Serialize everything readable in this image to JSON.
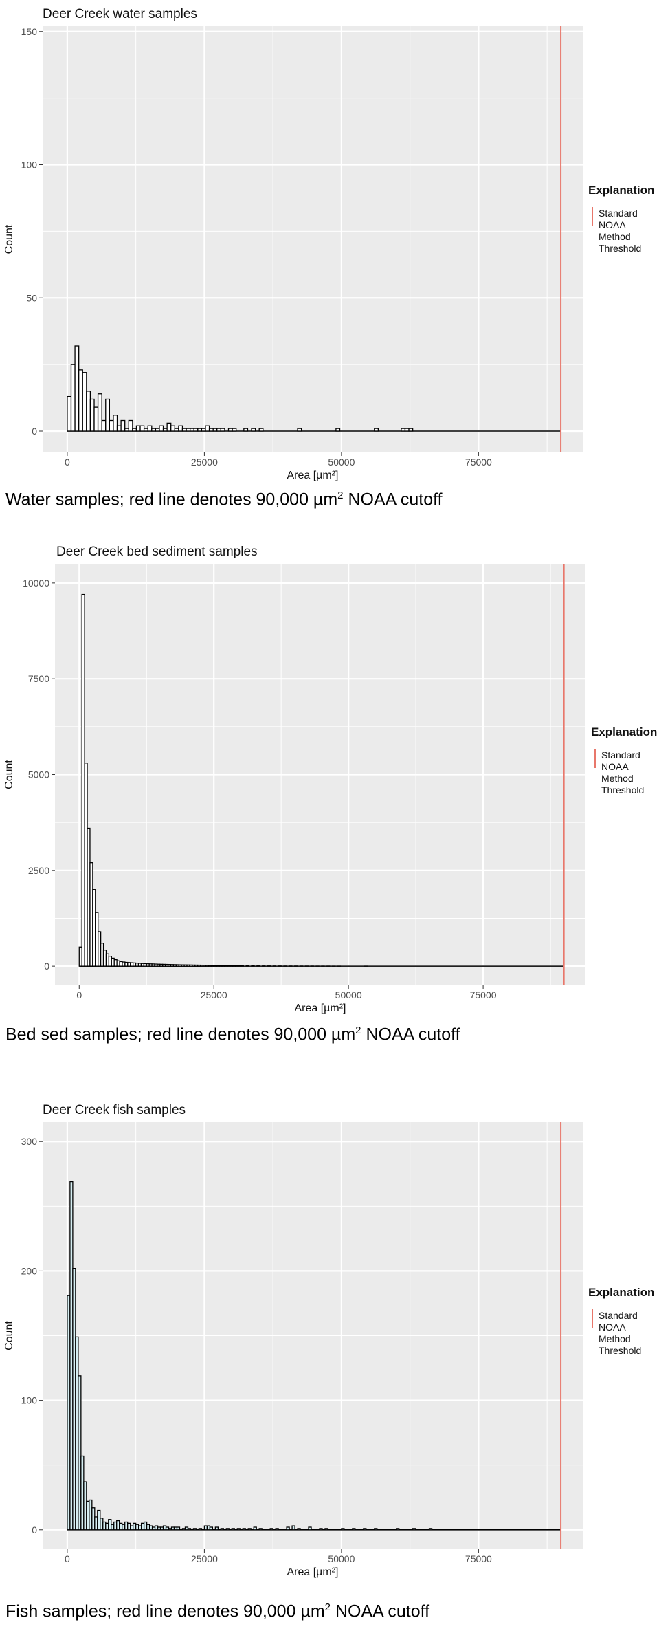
{
  "panels": [
    {
      "caption": {
        "before": "Water samples; red line denotes 90,000 µm",
        "sup": "2",
        "after": " NOAA cutoff"
      },
      "legend_title": "Explanation",
      "legend_label": [
        "Standard",
        "NOAA",
        "Method",
        "Threshold"
      ]
    },
    {
      "caption": {
        "before": "Bed sed samples; red line denotes 90,000 µm",
        "sup": "2",
        "after": " NOAA cutoff"
      },
      "legend_title": "Explanation",
      "legend_label": [
        "Standard",
        "NOAA",
        "Method",
        "Threshold"
      ]
    },
    {
      "caption": {
        "before": "Fish samples; red line denotes 90,000 µm",
        "sup": "2",
        "after": " NOAA cutoff"
      },
      "legend_title": "Explanation",
      "legend_label": [
        "Standard",
        "NOAA",
        "Method",
        "Threshold"
      ]
    }
  ],
  "colors": {
    "panel_bg": "#ebebeb",
    "grid": "#ffffff",
    "bar_outline": "#000000",
    "bar_fill_water": "#ffffff",
    "bar_fill_sed": "#ffffff",
    "bar_fill_fish": "#d6eef2",
    "threshold": "#e8776b",
    "axis_text": "#4d4d4d"
  },
  "chart_data": [
    {
      "type": "bar",
      "title": "Deer Creek water samples",
      "xlabel": "Area [µm²]",
      "ylabel": "Count",
      "xlim": [
        -4500,
        94000
      ],
      "ylim": [
        -8,
        152
      ],
      "xticks": [
        0,
        25000,
        50000,
        75000
      ],
      "xtick_labels": [
        "0",
        "25000",
        "50000",
        "75000"
      ],
      "yticks": [
        0,
        50,
        100,
        150
      ],
      "ytick_labels": [
        "0",
        "50",
        "100",
        "150"
      ],
      "bin_width": 700,
      "bins_start": 0,
      "bins_end": 90000,
      "bars": [
        [
          0,
          13
        ],
        [
          700,
          25
        ],
        [
          1400,
          32
        ],
        [
          2100,
          23
        ],
        [
          2800,
          22
        ],
        [
          3500,
          15
        ],
        [
          4200,
          12
        ],
        [
          4900,
          9
        ],
        [
          5600,
          14
        ],
        [
          6300,
          4
        ],
        [
          7000,
          12
        ],
        [
          7700,
          4
        ],
        [
          8400,
          6
        ],
        [
          9100,
          2
        ],
        [
          9800,
          4
        ],
        [
          10500,
          1
        ],
        [
          11200,
          4
        ],
        [
          11900,
          1
        ],
        [
          12600,
          2
        ],
        [
          13300,
          2
        ],
        [
          14000,
          1
        ],
        [
          14700,
          2
        ],
        [
          15400,
          1
        ],
        [
          16100,
          1
        ],
        [
          16800,
          2
        ],
        [
          17500,
          1
        ],
        [
          18200,
          3
        ],
        [
          18900,
          2
        ],
        [
          19600,
          1
        ],
        [
          20300,
          2
        ],
        [
          21000,
          1
        ],
        [
          21700,
          1
        ],
        [
          22400,
          1
        ],
        [
          23100,
          1
        ],
        [
          23800,
          1
        ],
        [
          24500,
          1
        ],
        [
          25200,
          2
        ],
        [
          25900,
          1
        ],
        [
          26600,
          1
        ],
        [
          27300,
          1
        ],
        [
          28000,
          1
        ],
        [
          29400,
          1
        ],
        [
          30100,
          1
        ],
        [
          32200,
          1
        ],
        [
          33600,
          1
        ],
        [
          35000,
          1
        ],
        [
          42000,
          1
        ],
        [
          49000,
          1
        ],
        [
          56000,
          1
        ],
        [
          60900,
          1
        ],
        [
          61600,
          1
        ],
        [
          62300,
          1
        ]
      ],
      "threshold_x": 90000,
      "legend": {
        "title": "Explanation",
        "entries": [
          "Standard NOAA Method Threshold"
        ],
        "position": "right"
      },
      "grid": true
    },
    {
      "type": "bar",
      "title": "Deer Creek bed sediment samples",
      "xlabel": "Area [µm²]",
      "ylabel": "Count",
      "xlim": [
        -4500,
        94000
      ],
      "ylim": [
        -500,
        10500
      ],
      "xticks": [
        0,
        25000,
        50000,
        75000
      ],
      "xtick_labels": [
        "0",
        "25000",
        "50000",
        "75000"
      ],
      "yticks": [
        0,
        2500,
        5000,
        7500,
        10000
      ],
      "ytick_labels": [
        "0",
        "2500",
        "5000",
        "7500",
        "10000"
      ],
      "bin_width": 500,
      "bins_start": 0,
      "bins_end": 90000,
      "bars": [
        [
          0,
          500
        ],
        [
          500,
          9700
        ],
        [
          1000,
          5300
        ],
        [
          1500,
          3600
        ],
        [
          2000,
          2700
        ],
        [
          2500,
          2000
        ],
        [
          3000,
          1400
        ],
        [
          3500,
          900
        ],
        [
          4000,
          600
        ],
        [
          4500,
          420
        ],
        [
          5000,
          320
        ],
        [
          5500,
          260
        ],
        [
          6000,
          210
        ],
        [
          6500,
          170
        ],
        [
          7000,
          140
        ],
        [
          7500,
          120
        ],
        [
          8000,
          110
        ],
        [
          8500,
          100
        ],
        [
          9000,
          95
        ],
        [
          9500,
          90
        ],
        [
          10000,
          85
        ],
        [
          10500,
          80
        ],
        [
          11000,
          75
        ],
        [
          11500,
          70
        ],
        [
          12000,
          65
        ],
        [
          12500,
          62
        ],
        [
          13000,
          60
        ],
        [
          13500,
          58
        ],
        [
          14000,
          55
        ],
        [
          14500,
          52
        ],
        [
          15000,
          50
        ],
        [
          15500,
          48
        ],
        [
          16000,
          46
        ],
        [
          16500,
          44
        ],
        [
          17000,
          42
        ],
        [
          17500,
          40
        ],
        [
          18000,
          38
        ],
        [
          18500,
          36
        ],
        [
          19000,
          35
        ],
        [
          19500,
          34
        ],
        [
          20000,
          33
        ],
        [
          20500,
          32
        ],
        [
          21000,
          30
        ],
        [
          21500,
          29
        ],
        [
          22000,
          28
        ],
        [
          22500,
          27
        ],
        [
          23000,
          26
        ],
        [
          23500,
          25
        ],
        [
          24000,
          24
        ],
        [
          24500,
          23
        ],
        [
          25000,
          22
        ],
        [
          25500,
          21
        ],
        [
          26000,
          20
        ],
        [
          26500,
          19
        ],
        [
          27000,
          18
        ],
        [
          27500,
          17
        ],
        [
          28000,
          16
        ],
        [
          28500,
          15
        ],
        [
          29000,
          14
        ],
        [
          29500,
          13
        ],
        [
          30000,
          12
        ],
        [
          31000,
          10
        ],
        [
          32000,
          9
        ],
        [
          33000,
          8
        ],
        [
          34000,
          7
        ],
        [
          35000,
          7
        ],
        [
          36000,
          6
        ],
        [
          37000,
          6
        ],
        [
          38000,
          5
        ],
        [
          39000,
          5
        ],
        [
          40000,
          5
        ],
        [
          41000,
          4
        ],
        [
          42000,
          4
        ],
        [
          43000,
          4
        ],
        [
          44000,
          3
        ],
        [
          45000,
          3
        ],
        [
          46000,
          3
        ],
        [
          47000,
          2
        ],
        [
          48000,
          2
        ],
        [
          53000,
          2
        ]
      ],
      "threshold_x": 90000,
      "legend": {
        "title": "Explanation",
        "entries": [
          "Standard NOAA Method Threshold"
        ],
        "position": "right"
      },
      "grid": true
    },
    {
      "type": "bar",
      "title": "Deer Creek fish samples",
      "xlabel": "Area [µm²]",
      "ylabel": "Count",
      "xlim": [
        -4500,
        94000
      ],
      "ylim": [
        -15,
        315
      ],
      "xticks": [
        0,
        25000,
        50000,
        75000
      ],
      "xtick_labels": [
        "0",
        "25000",
        "50000",
        "75000"
      ],
      "yticks": [
        0,
        100,
        200,
        300
      ],
      "ytick_labels": [
        "0",
        "100",
        "200",
        "300"
      ],
      "bin_width": 500,
      "bins_start": 0,
      "bins_end": 90000,
      "bars": [
        [
          0,
          181
        ],
        [
          500,
          269
        ],
        [
          1000,
          202
        ],
        [
          1500,
          149
        ],
        [
          2000,
          119
        ],
        [
          2500,
          57
        ],
        [
          3000,
          37
        ],
        [
          3500,
          22
        ],
        [
          4000,
          23
        ],
        [
          4500,
          17
        ],
        [
          5000,
          10
        ],
        [
          5500,
          15
        ],
        [
          6000,
          9
        ],
        [
          6500,
          6
        ],
        [
          7000,
          5
        ],
        [
          7500,
          8
        ],
        [
          8000,
          4
        ],
        [
          8500,
          6
        ],
        [
          9000,
          7
        ],
        [
          9500,
          5
        ],
        [
          10000,
          4
        ],
        [
          10500,
          6
        ],
        [
          11000,
          5
        ],
        [
          11500,
          3
        ],
        [
          12000,
          5
        ],
        [
          12500,
          4
        ],
        [
          13000,
          3
        ],
        [
          13500,
          5
        ],
        [
          14000,
          6
        ],
        [
          14500,
          4
        ],
        [
          15000,
          3
        ],
        [
          15500,
          2
        ],
        [
          16000,
          3
        ],
        [
          16500,
          2
        ],
        [
          17000,
          2
        ],
        [
          17500,
          3
        ],
        [
          18000,
          2
        ],
        [
          18500,
          1
        ],
        [
          19000,
          2
        ],
        [
          19500,
          2
        ],
        [
          20000,
          2
        ],
        [
          21000,
          1
        ],
        [
          21500,
          2
        ],
        [
          22000,
          1
        ],
        [
          23000,
          1
        ],
        [
          24000,
          1
        ],
        [
          25000,
          3
        ],
        [
          25500,
          3
        ],
        [
          26000,
          2
        ],
        [
          27000,
          2
        ],
        [
          28000,
          1
        ],
        [
          29000,
          1
        ],
        [
          30000,
          1
        ],
        [
          31000,
          1
        ],
        [
          32000,
          1
        ],
        [
          33000,
          1
        ],
        [
          34000,
          2
        ],
        [
          35000,
          1
        ],
        [
          37000,
          1
        ],
        [
          38000,
          1
        ],
        [
          40000,
          2
        ],
        [
          41000,
          3
        ],
        [
          42000,
          1
        ],
        [
          44000,
          2
        ],
        [
          46000,
          1
        ],
        [
          47000,
          1
        ],
        [
          50000,
          1
        ],
        [
          52000,
          1
        ],
        [
          54000,
          1
        ],
        [
          56000,
          1
        ],
        [
          60000,
          1
        ],
        [
          63000,
          1
        ],
        [
          66000,
          1
        ]
      ],
      "threshold_x": 90000,
      "legend": {
        "title": "Explanation",
        "entries": [
          "Standard NOAA Method Threshold"
        ],
        "position": "right"
      },
      "grid": true
    }
  ]
}
